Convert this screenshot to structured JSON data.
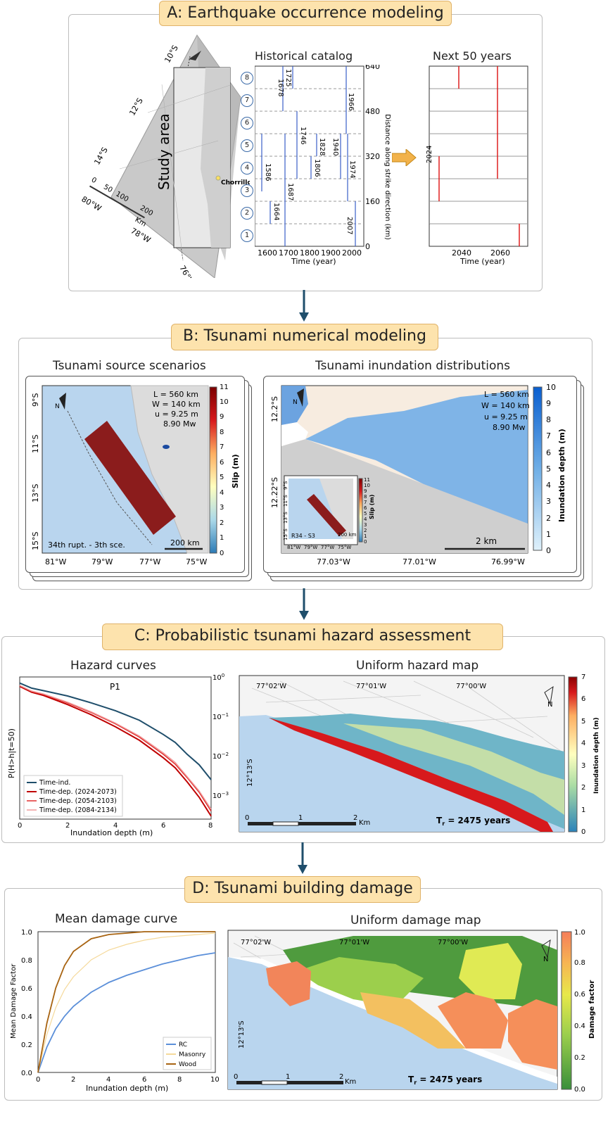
{
  "sections": {
    "a": {
      "title": "A: Earthquake occurrence modeling"
    },
    "b": {
      "title": "B: Tsunami numerical modeling"
    },
    "c": {
      "title": "C: Probabilistic tsunami hazard assessment"
    },
    "d": {
      "title": "D: Tsunami building damage"
    }
  },
  "panel_a": {
    "map": {
      "study_area": "Study area",
      "place": "Chorrillos",
      "lat_labels": [
        "10°S",
        "12°S",
        "14°S"
      ],
      "lon_labels": [
        "80°W",
        "78°W",
        "76°W"
      ],
      "scale_ticks": [
        "0",
        "50",
        "100",
        "200"
      ],
      "scale_unit": "Km"
    },
    "catalog": {
      "title": "Historical catalog",
      "x_ticks": [
        "1600",
        "1700",
        "1800",
        "1900",
        "2000"
      ],
      "xlabel": "Time (year)",
      "y_ticks": [
        "0",
        "160",
        "320",
        "480",
        "640"
      ],
      "ylabel": "Distance along strike direction (km)",
      "segments": [
        "1",
        "2",
        "3",
        "4",
        "5",
        "6",
        "7",
        "8"
      ],
      "events": [
        "1586",
        "1664",
        "1678",
        "1687",
        "1725",
        "1746",
        "1806",
        "1828",
        "1940",
        "1966",
        "1974",
        "2007"
      ]
    },
    "forecast": {
      "title": "Next 50 years",
      "x_ticks": [
        "2040",
        "2060"
      ],
      "xlabel": "Time (year)",
      "start_year": "2024"
    }
  },
  "panel_b": {
    "source": {
      "title": "Tsunami source scenarios",
      "params": [
        "L = 560 km",
        "W = 140 km",
        "u = 9.25 m",
        "8.90 Mw"
      ],
      "scenario": "34th rupt. - 3th sce.",
      "scale": "200 km",
      "x_ticks": [
        "81°W",
        "79°W",
        "77°W",
        "75°W"
      ],
      "y_ticks": [
        "9°S",
        "11°S",
        "13°S",
        "15°S"
      ],
      "colorbar_label": "Slip (m)",
      "colorbar_ticks": [
        "0",
        "1",
        "2",
        "3",
        "4",
        "5",
        "6",
        "7",
        "8",
        "9",
        "10",
        "11"
      ]
    },
    "inundation": {
      "title": "Tsunami inundation distributions",
      "params": [
        "L = 560 km",
        "W = 140 km",
        "u = 9.25 m",
        "8.90 Mw"
      ],
      "scale": "2 km",
      "x_ticks": [
        "77.03°W",
        "77.01°W",
        "76.99°W"
      ],
      "y_ticks": [
        "12.2°S",
        "12.22°S"
      ],
      "colorbar_label": "Inundation depth (m)",
      "colorbar_ticks": [
        "0",
        "1",
        "2",
        "3",
        "4",
        "5",
        "6",
        "7",
        "8",
        "9",
        "10"
      ],
      "inset": {
        "label": "R34 - S3",
        "scale": "200 km",
        "colorbar_label": "Slip (m)",
        "colorbar_ticks": [
          "0",
          "1",
          "2",
          "3",
          "4",
          "5",
          "6",
          "7",
          "8",
          "9",
          "10",
          "11"
        ],
        "x_ticks": [
          "81°W",
          "79°W",
          "77°W",
          "75°W"
        ],
        "y_ticks": [
          "9°S",
          "11°S",
          "13°S",
          "15°S"
        ]
      }
    }
  },
  "panel_c": {
    "curves": {
      "title": "Hazard curves",
      "subtitle": "P1",
      "xlabel": "Inundation depth (m)",
      "ylabel": "P(H>h|t=50)",
      "x_ticks": [
        "0",
        "2",
        "4",
        "6",
        "8"
      ],
      "legend": [
        "Time-ind.",
        "Time-dep. (2024-2073)",
        "Time-dep. (2054-2103)",
        "Time-dep. (2084-2134)"
      ]
    },
    "map": {
      "title": "Uniform hazard map",
      "lon_labels": [
        "77°02'W",
        "77°01'W",
        "77°00'W"
      ],
      "lat_label": "12°13'S",
      "scale_ticks": [
        "0",
        "1",
        "2"
      ],
      "scale_unit": "Km",
      "return_period": "T",
      "return_period_sub": "r",
      "return_period_value": " = 2475 years",
      "north": "N",
      "colorbar_label": "Inundation depth (m)",
      "colorbar_ticks": [
        "0",
        "1",
        "2",
        "3",
        "4",
        "5",
        "6",
        "7"
      ]
    }
  },
  "panel_d": {
    "curves": {
      "title": "Mean damage curve",
      "xlabel": "Inundation depth (m)",
      "ylabel": "Mean Damage Factor",
      "x_ticks": [
        "0",
        "2",
        "4",
        "6",
        "8",
        "10"
      ],
      "y_ticks": [
        "0.0",
        "0.2",
        "0.4",
        "0.6",
        "0.8",
        "1.0"
      ],
      "legend": [
        "RC",
        "Masonry",
        "Wood"
      ]
    },
    "map": {
      "title": "Uniform damage map",
      "lon_labels": [
        "77°02'W",
        "77°01'W",
        "77°00'W"
      ],
      "lat_label": "12°13'S",
      "scale_ticks": [
        "0",
        "1",
        "2"
      ],
      "scale_unit": "Km",
      "return_period": "T",
      "return_period_sub": "r",
      "return_period_value": " = 2475 years",
      "north": "N",
      "colorbar_label": "Damage factor",
      "colorbar_ticks": [
        "0.0",
        "0.2",
        "0.4",
        "0.6",
        "0.8",
        "1.0"
      ]
    }
  },
  "chart_data": [
    {
      "type": "line",
      "title": "Hazard curves",
      "subtitle": "P1",
      "xlabel": "Inundation depth (m)",
      "ylabel": "P(H>h|t=50)",
      "xlim": [
        0,
        8
      ],
      "ylim_log10": [
        -3.6,
        0
      ],
      "y_ticks": [
        "10^0",
        "10^-1",
        "10^-2",
        "10^-3"
      ],
      "yscale": "log",
      "x": [
        0,
        0.5,
        1,
        2,
        3,
        4,
        5,
        6,
        6.5,
        7,
        7.5,
        8
      ],
      "series": [
        {
          "name": "Time-ind.",
          "color": "#1f4e6b",
          "values": [
            0.7,
            0.52,
            0.45,
            0.33,
            0.22,
            0.14,
            0.08,
            0.035,
            0.022,
            0.011,
            0.006,
            0.0025
          ]
        },
        {
          "name": "Time-dep. (2024-2073)",
          "color": "#c00000",
          "values": [
            0.58,
            0.41,
            0.34,
            0.2,
            0.11,
            0.055,
            0.025,
            0.009,
            0.005,
            0.0022,
            0.0009,
            0.0003
          ]
        },
        {
          "name": "Time-dep. (2054-2103)",
          "color": "#e03030",
          "values": [
            0.6,
            0.43,
            0.36,
            0.22,
            0.125,
            0.065,
            0.03,
            0.011,
            0.0062,
            0.0028,
            0.0012,
            0.0004
          ]
        },
        {
          "name": "Time-dep. (2084-2134)",
          "color": "#f09a9a",
          "values": [
            0.61,
            0.44,
            0.37,
            0.23,
            0.13,
            0.068,
            0.032,
            0.012,
            0.0068,
            0.003,
            0.0013,
            0.00045
          ]
        }
      ]
    },
    {
      "type": "line",
      "title": "Mean damage curve",
      "xlabel": "Inundation depth (m)",
      "ylabel": "Mean Damage Factor",
      "xlim": [
        0,
        10
      ],
      "ylim": [
        0,
        1
      ],
      "x": [
        0,
        0.5,
        1,
        1.5,
        2,
        3,
        4,
        5,
        6,
        7,
        8,
        9,
        10
      ],
      "series": [
        {
          "name": "RC",
          "color": "#5b8fd9",
          "values": [
            0,
            0.18,
            0.31,
            0.4,
            0.47,
            0.57,
            0.64,
            0.69,
            0.73,
            0.77,
            0.8,
            0.83,
            0.85
          ]
        },
        {
          "name": "Masonry",
          "color": "#f5d99a",
          "values": [
            0,
            0.27,
            0.46,
            0.59,
            0.68,
            0.8,
            0.87,
            0.91,
            0.94,
            0.96,
            0.97,
            0.98,
            0.99
          ]
        },
        {
          "name": "Wood",
          "color": "#a86412",
          "values": [
            0,
            0.35,
            0.6,
            0.76,
            0.86,
            0.95,
            0.98,
            0.99,
            1.0,
            1.0,
            1.0,
            1.0,
            1.0
          ]
        }
      ]
    }
  ]
}
